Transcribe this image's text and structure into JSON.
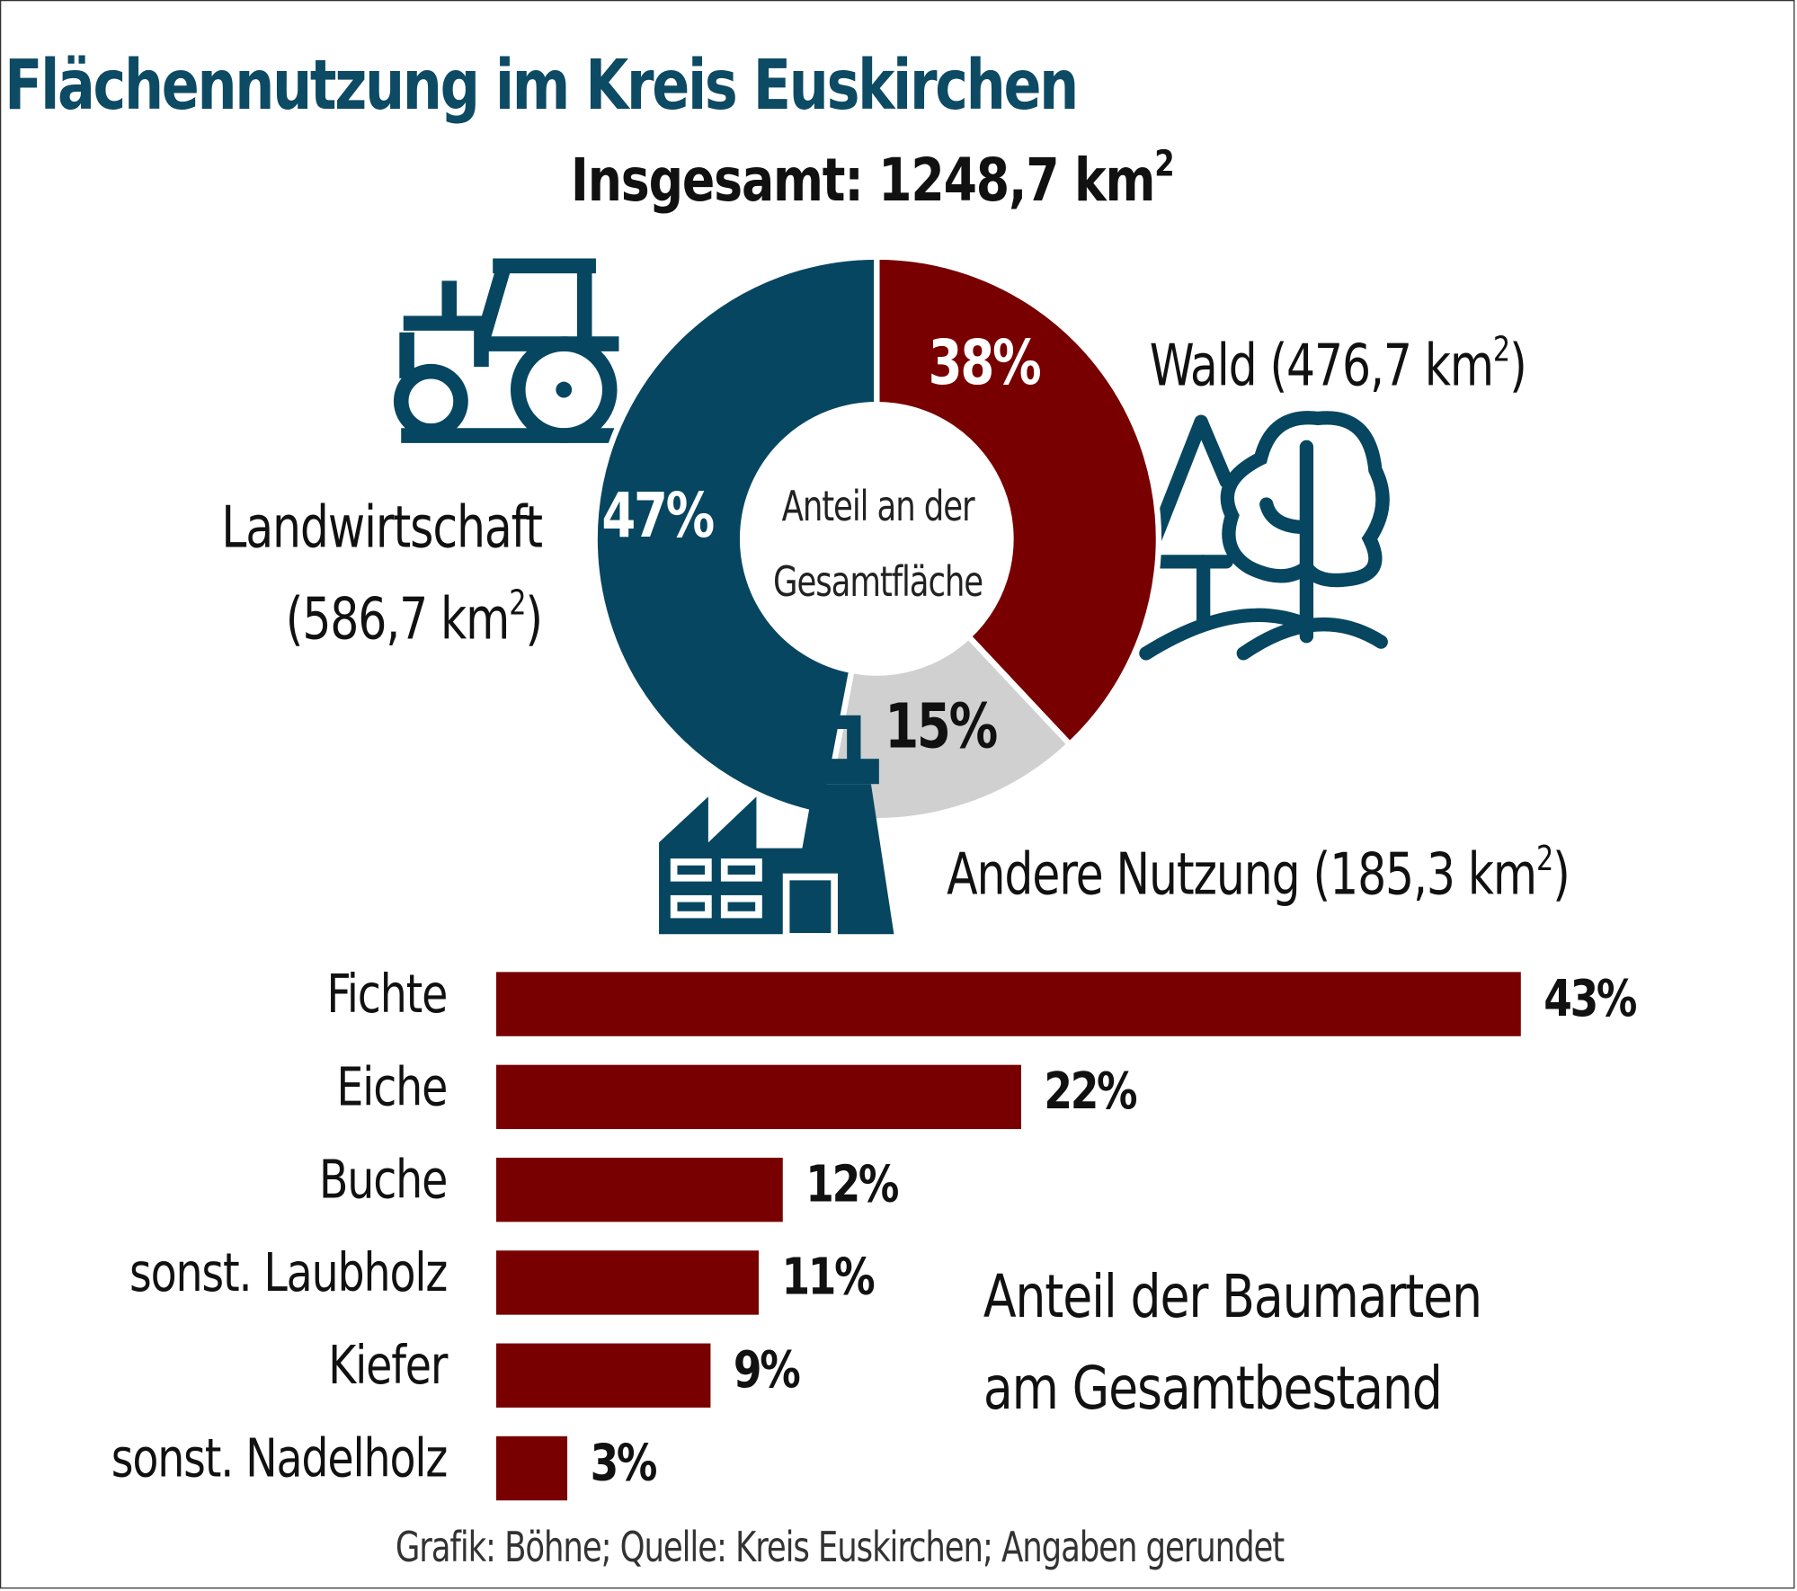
{
  "title": "Flächennutzung im Kreis Euskirchen",
  "total": {
    "label": "Insgesamt: 1248,7 km",
    "sup": "2"
  },
  "colors": {
    "landwirtschaft": "#064660",
    "wald": "#780000",
    "andere": "#d0d0d0",
    "title": "#0d4a63"
  },
  "icons": [
    "tractor-icon",
    "trees-icon",
    "factory-icon"
  ],
  "chart_data": [
    {
      "type": "pie",
      "center_label": [
        "Anteil an der",
        "Gesamtfläche"
      ],
      "slices": [
        {
          "name": "Wald",
          "area": "(476,7 km",
          "value": 38,
          "label": "38%",
          "color": "#780000"
        },
        {
          "name": "Andere Nutzung",
          "area": "(185,3 km",
          "value": 15,
          "label": "15%",
          "color": "#d0d0d0"
        },
        {
          "name": "Landwirtschaft",
          "area": "(586,7 km",
          "value": 47,
          "label": "47%",
          "color": "#064660"
        }
      ],
      "unit_sup": "2"
    },
    {
      "type": "bar",
      "orientation": "horizontal",
      "title": [
        "Anteil der Baumarten",
        "am Gesamtbestand"
      ],
      "categories": [
        "Fichte",
        "Eiche",
        "Buche",
        "sonst. Laubholz",
        "Kiefer",
        "sonst. Nadelholz"
      ],
      "values": [
        43,
        22,
        12,
        11,
        9,
        3
      ],
      "labels": [
        "43%",
        "22%",
        "12%",
        "11%",
        "9%",
        "3%"
      ],
      "color": "#780000"
    }
  ],
  "source": "Grafik: Böhne; Quelle: Kreis Euskirchen; Angaben gerundet"
}
